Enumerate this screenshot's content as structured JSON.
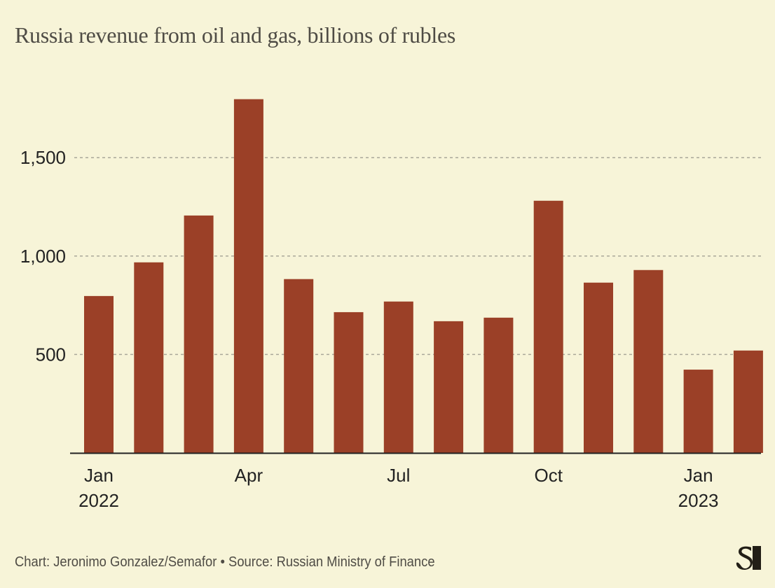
{
  "title": "Russia revenue from oil and gas, billions of rubles",
  "footer": {
    "credit": "Chart: Jeronimo Gonzalez/Semafor • Source: Russian Ministry of Finance",
    "logo": "semafor-logo-icon"
  },
  "colors": {
    "background": "#f7f4d8",
    "bar": "#9b4027",
    "grid": "#aaa89a",
    "axis": "#222222",
    "title": "#4f4c45"
  },
  "chart_data": {
    "type": "bar",
    "title": "Russia revenue from oil and gas, billions of rubles",
    "xlabel": "",
    "ylabel": "",
    "categories": [
      "Jan 2022",
      "Feb 2022",
      "Mar 2022",
      "Apr 2022",
      "May 2022",
      "Jun 2022",
      "Jul 2022",
      "Aug 2022",
      "Sep 2022",
      "Oct 2022",
      "Nov 2022",
      "Dec 2022",
      "Jan 2023",
      "Feb 2023"
    ],
    "values": [
      797,
      968,
      1206,
      1797,
      883,
      715,
      769,
      669,
      687,
      1281,
      865,
      929,
      423,
      520
    ],
    "ylim": [
      0,
      1850
    ],
    "yticks": [
      500,
      1000,
      1500
    ],
    "ytick_labels": [
      "500",
      "1,000",
      "1,500"
    ],
    "xtick_labels": [
      {
        "index": 0,
        "lines": [
          "Jan",
          "2022"
        ]
      },
      {
        "index": 3,
        "lines": [
          "Apr"
        ]
      },
      {
        "index": 6,
        "lines": [
          "Jul"
        ]
      },
      {
        "index": 9,
        "lines": [
          "Oct"
        ]
      },
      {
        "index": 12,
        "lines": [
          "Jan",
          "2023"
        ]
      }
    ],
    "grid": true,
    "grid_style": "dashed-horizontal",
    "legend": "none"
  }
}
